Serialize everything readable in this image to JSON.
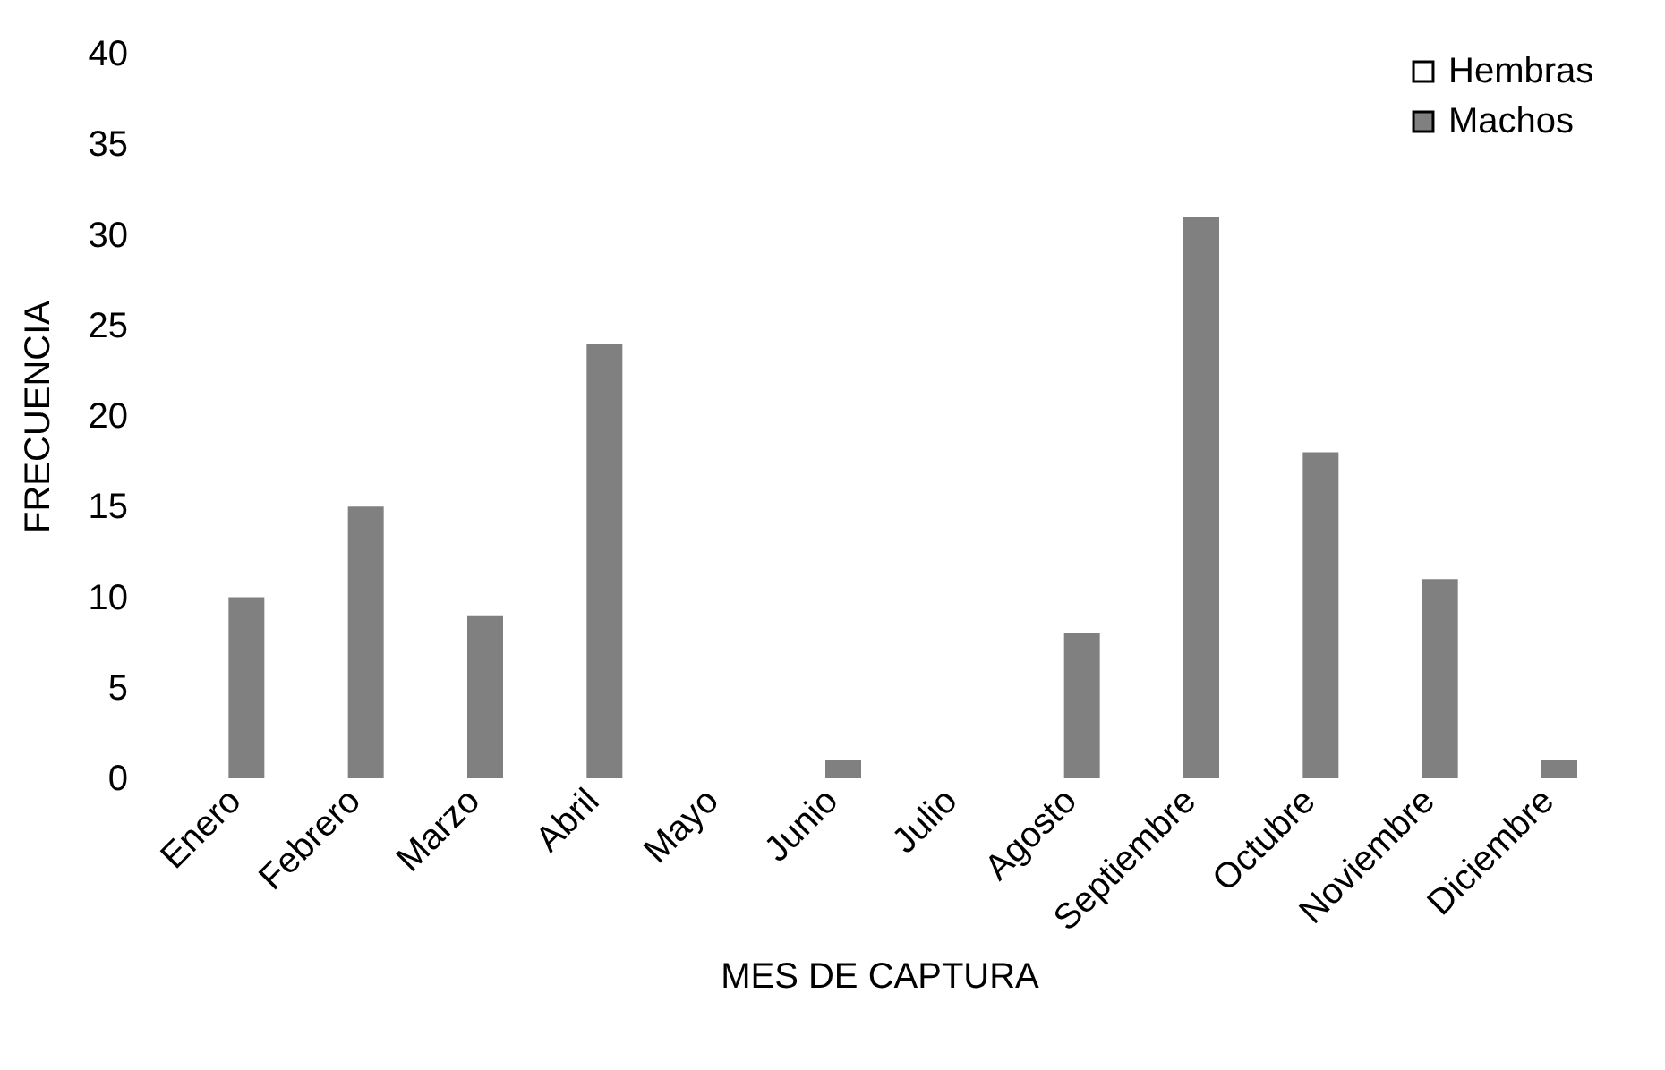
{
  "chart_data": {
    "type": "bar",
    "categories": [
      "Enero",
      "Febrero",
      "Marzo",
      "Abril",
      "Mayo",
      "Junio",
      "Julio",
      "Agosto",
      "Septiembre",
      "Octubre",
      "Noviembre",
      "Diciembre"
    ],
    "series": [
      {
        "name": "Hembras",
        "color": "#ffffff",
        "values": [
          null,
          null,
          null,
          null,
          null,
          null,
          null,
          null,
          null,
          null,
          null,
          null
        ]
      },
      {
        "name": "Machos",
        "color": "#808080",
        "values": [
          10,
          15,
          9,
          24,
          0,
          1,
          0,
          8,
          31,
          18,
          11,
          1
        ]
      }
    ],
    "xlabel": "MES DE CAPTURA",
    "ylabel": "FRECUENCIA",
    "ylim": [
      0,
      40
    ],
    "yticks": [
      0,
      5,
      10,
      15,
      20,
      25,
      30,
      35,
      40
    ],
    "grid": false,
    "legend": "top right"
  }
}
